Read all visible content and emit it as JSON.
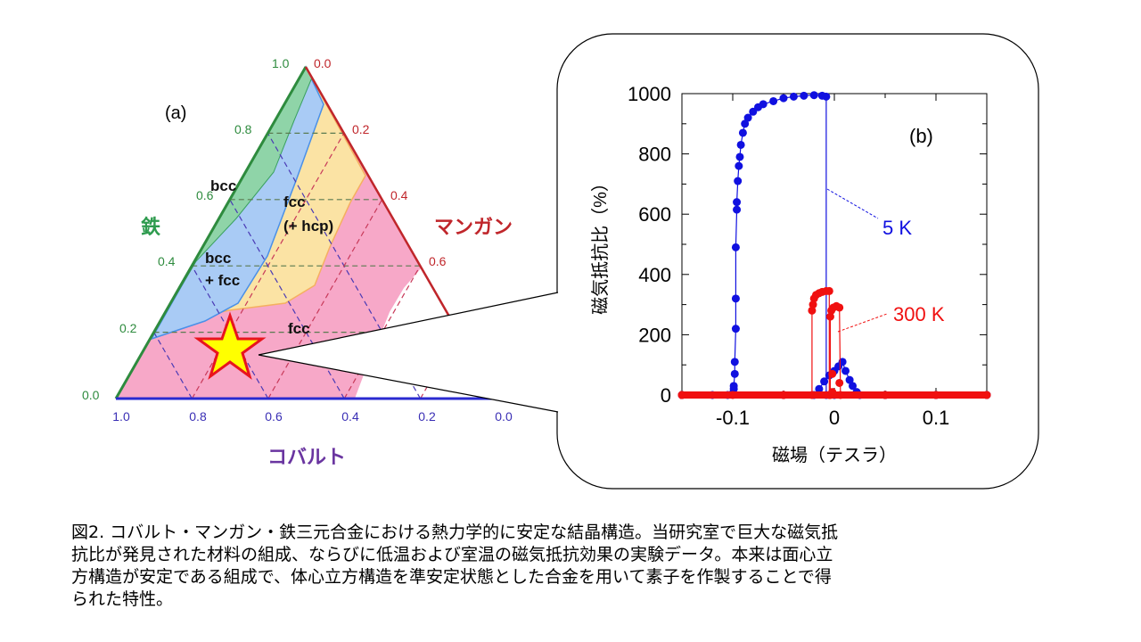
{
  "ternary": {
    "panel_label": "(a)",
    "top_component": "鉄",
    "right_component": "マンガン",
    "bottom_component": "コバルト",
    "fe_ticks": [
      "0.0",
      "0.2",
      "0.4",
      "0.6",
      "0.8",
      "1.0"
    ],
    "mn_ticks": [
      "0.0",
      "0.2",
      "0.4",
      "0.6"
    ],
    "co_ticks": [
      "1.0",
      "0.8",
      "0.6",
      "0.4",
      "0.2",
      "0.0"
    ],
    "regions": {
      "bcc": "bcc",
      "bcc_fcc": [
        "bcc",
        "+ fcc"
      ],
      "fcc_hcp": [
        "fcc",
        "(+ hcp)"
      ],
      "fcc": "fcc"
    },
    "colors": {
      "fe": "#2e8b3e",
      "mn": "#c0262b",
      "co": "#3a2fb5",
      "co_label": "#6a35a0",
      "bcc": "#8fd4a8",
      "bcc_fcc": "#a9cbf5",
      "fcc_hcp": "#fbe3a4",
      "fcc": "#f7a8c8",
      "star": "#ffff00",
      "star_edge": "#e8141e"
    },
    "marker": "star-icon"
  },
  "chart_data": {
    "type": "scatter",
    "panel_label": "(b)",
    "xlabel": "磁場（テスラ）",
    "ylabel": "磁気抵抗比（%）",
    "xlim": [
      -0.15,
      0.15
    ],
    "ylim": [
      0,
      1000
    ],
    "xticks": [
      "-0.1",
      "0",
      "0.1"
    ],
    "xtick_values": [
      -0.1,
      0,
      0.1
    ],
    "yticks": [
      "0",
      "200",
      "400",
      "600",
      "800",
      "1000"
    ],
    "ytick_values": [
      0,
      200,
      400,
      600,
      800,
      1000
    ],
    "grid": false,
    "series": [
      {
        "name": "5 K",
        "color": "#1010e0",
        "segments": [
          [
            [
              -0.15,
              0
            ],
            [
              -0.12,
              0
            ],
            [
              -0.105,
              0
            ],
            [
              -0.1,
              5
            ],
            [
              -0.099,
              20
            ],
            [
              -0.099,
              30
            ],
            [
              -0.098,
              70
            ],
            [
              -0.098,
              110
            ],
            [
              -0.097,
              220
            ],
            [
              -0.097,
              320
            ],
            [
              -0.097,
              490
            ],
            [
              -0.096,
              615
            ],
            [
              -0.096,
              640
            ],
            [
              -0.095,
              710
            ],
            [
              -0.094,
              760
            ],
            [
              -0.093,
              790
            ],
            [
              -0.092,
              830
            ],
            [
              -0.09,
              870
            ],
            [
              -0.088,
              900
            ],
            [
              -0.085,
              920
            ],
            [
              -0.08,
              940
            ],
            [
              -0.075,
              955
            ],
            [
              -0.07,
              965
            ],
            [
              -0.06,
              975
            ],
            [
              -0.05,
              985
            ],
            [
              -0.04,
              990
            ],
            [
              -0.03,
              993
            ],
            [
              -0.02,
              995
            ],
            [
              -0.012,
              993
            ],
            [
              -0.008,
              990
            ],
            [
              -0.008,
              0
            ],
            [
              0.0,
              0
            ],
            [
              0.05,
              0
            ],
            [
              0.1,
              0
            ],
            [
              0.15,
              0
            ]
          ],
          [
            [
              -0.15,
              0
            ],
            [
              -0.05,
              0
            ],
            [
              -0.02,
              0
            ],
            [
              -0.015,
              20
            ],
            [
              -0.01,
              45
            ],
            [
              -0.005,
              65
            ],
            [
              0.0,
              80
            ],
            [
              0.004,
              95
            ],
            [
              0.008,
              110
            ],
            [
              0.011,
              80
            ],
            [
              0.015,
              50
            ],
            [
              0.018,
              30
            ],
            [
              0.022,
              10
            ],
            [
              0.025,
              0
            ],
            [
              0.05,
              0
            ],
            [
              0.1,
              0
            ],
            [
              0.15,
              0
            ]
          ]
        ]
      },
      {
        "name": "300 K",
        "color": "#f01010",
        "segments": [
          [
            [
              -0.15,
              0
            ],
            [
              -0.1,
              0
            ],
            [
              -0.05,
              0
            ],
            [
              -0.022,
              0
            ],
            [
              -0.022,
              280
            ],
            [
              -0.021,
              300
            ],
            [
              -0.02,
              320
            ],
            [
              -0.018,
              332
            ],
            [
              -0.015,
              338
            ],
            [
              -0.012,
              342
            ],
            [
              -0.008,
              345
            ],
            [
              -0.005,
              345
            ],
            [
              -0.005,
              0
            ],
            [
              0.05,
              0
            ],
            [
              0.1,
              0
            ],
            [
              0.15,
              0
            ]
          ],
          [
            [
              -0.15,
              0
            ],
            [
              -0.05,
              0
            ],
            [
              -0.004,
              0
            ],
            [
              -0.004,
              260
            ],
            [
              -0.003,
              280
            ],
            [
              -0.001,
              290
            ],
            [
              0.002,
              295
            ],
            [
              0.005,
              290
            ],
            [
              0.006,
              0
            ],
            [
              0.05,
              0
            ],
            [
              0.1,
              0
            ],
            [
              0.15,
              0
            ]
          ],
          [
            [
              -0.002,
              70
            ]
          ],
          [
            [
              0.005,
              40
            ]
          ],
          [
            [
              -0.002,
              10
            ]
          ]
        ]
      }
    ]
  },
  "caption": {
    "lines": [
      "図2. コバルト・マンガン・鉄三元合金における熱力学的に安定な結晶構造。当研究室で巨大な磁気抵",
      "抗比が発見された材料の組成、ならびに低温および室温の磁気抵抗効果の実験データ。本来は面心立",
      "方構造が安定である組成で、体心立方構造を準安定状態とした合金を用いて素子を作製することで得",
      "られた特性。"
    ]
  }
}
